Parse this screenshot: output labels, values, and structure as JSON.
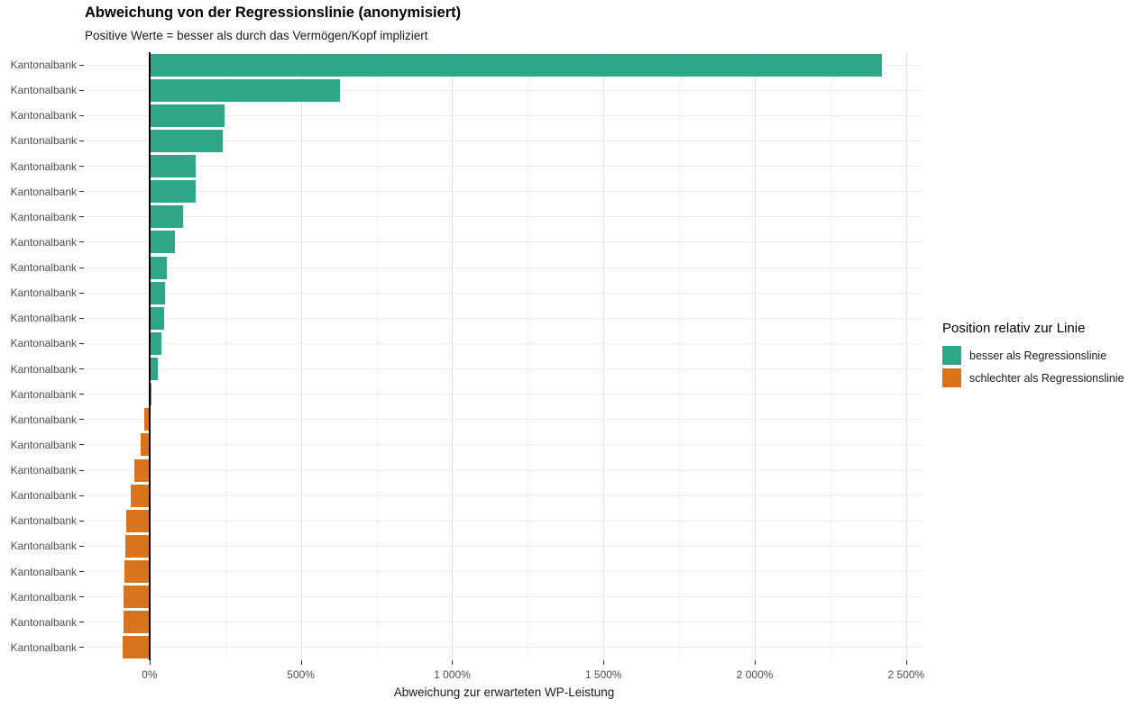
{
  "chart_data": {
    "type": "bar",
    "orientation": "horizontal",
    "title": "Abweichung von der Regressionslinie (anonymisiert)",
    "subtitle": "Positive Werte = besser als durch das Vermögen/Kopf impliziert",
    "xlabel": "Abweichung zur erwarteten WP-Leistung",
    "ylabel": "",
    "categories": [
      "Kantonalbank",
      "Kantonalbank",
      "Kantonalbank",
      "Kantonalbank",
      "Kantonalbank",
      "Kantonalbank",
      "Kantonalbank",
      "Kantonalbank",
      "Kantonalbank",
      "Kantonalbank",
      "Kantonalbank",
      "Kantonalbank",
      "Kantonalbank",
      "Kantonalbank",
      "Kantonalbank",
      "Kantonalbank",
      "Kantonalbank",
      "Kantonalbank",
      "Kantonalbank",
      "Kantonalbank",
      "Kantonalbank",
      "Kantonalbank",
      "Kantonalbank",
      "Kantonalbank"
    ],
    "values": [
      2420,
      629,
      248,
      243,
      154,
      152,
      111,
      84,
      57,
      52,
      49,
      40,
      28,
      8,
      -17,
      -29,
      -51,
      -63,
      -76,
      -80,
      -83,
      -86,
      -86,
      -89
    ],
    "unit": "%",
    "xlim": [
      -211,
      2554
    ],
    "x_ticks": [
      {
        "value": 0,
        "label": "0%"
      },
      {
        "value": 500,
        "label": "500%"
      },
      {
        "value": 1000,
        "label": "1 000%"
      },
      {
        "value": 1500,
        "label": "1 500%"
      },
      {
        "value": 2000,
        "label": "2 000%"
      },
      {
        "value": 2500,
        "label": "2 500%"
      }
    ],
    "x_minor_ticks": [
      250,
      750,
      1250,
      1750,
      2250
    ],
    "grid": true,
    "zero_line_color": "#000000",
    "colors": {
      "positive": "#2EA687",
      "negative": "#D9731C"
    },
    "legend": {
      "title": "Position relativ zur Linie",
      "position": "right",
      "items": [
        {
          "label": "besser als Regressionslinie",
          "color": "#2EA687",
          "key": "positive"
        },
        {
          "label": "schlechter als Regressionslinie",
          "color": "#D9731C",
          "key": "negative"
        }
      ]
    }
  }
}
